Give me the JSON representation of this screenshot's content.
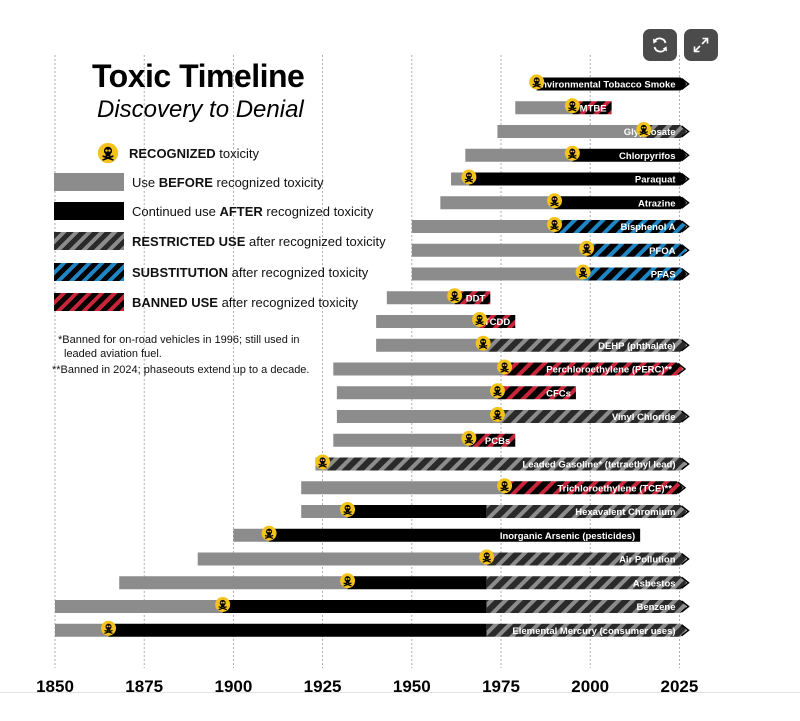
{
  "controls": {
    "refresh_icon": "refresh-icon",
    "expand_icon": "expand-icon"
  },
  "header": {
    "title": "Toxic Timeline",
    "subtitle": "Discovery to Denial"
  },
  "legend": {
    "recognized": {
      "strong": "RECOGNIZED",
      "rest": " toxicity"
    },
    "before": {
      "pre": "Use ",
      "strong": "BEFORE",
      "rest": " recognized toxicity"
    },
    "after": {
      "pre": "Continued use ",
      "strong": "AFTER",
      "rest": " recognized toxicity"
    },
    "restricted": {
      "strong": "RESTRICTED USE",
      "rest": " after recognized toxicity"
    },
    "substitution": {
      "strong": "SUBSTITUTION",
      "rest": " after recognized toxicity"
    },
    "banned": {
      "strong": "BANNED USE",
      "rest": " after recognized toxicity"
    }
  },
  "notes": {
    "note1_line1": "*Banned for on-road vehicles in 1996; still used in",
    "note1_line2": "leaded aviation fuel.",
    "note2": "**Banned in 2024; phaseouts extend up to a decade."
  },
  "colors": {
    "before": "#8c8c8c",
    "after": "#000000",
    "restricted_base": "#2a2a2a",
    "restricted_stripe": "#8c8c8c",
    "substitution_stripe": "#1f86c6",
    "banned_stripe": "#c8243a",
    "skull_badge": "#f3c21b",
    "gridline": "#999999"
  },
  "chart_data": {
    "type": "bar",
    "subtype": "horizontal timeline (Gantt)",
    "x_ticks": [
      1850,
      1875,
      1900,
      1925,
      1950,
      1975,
      2000,
      2025
    ],
    "xlim": [
      1850,
      2025
    ],
    "arrow_on_ongoing": true,
    "items": [
      {
        "label": "Environmental Tobacco Smoke",
        "start": 1985,
        "recognized": 1985,
        "mode": "after",
        "restricted_from": null,
        "end": 2027,
        "ongoing": true
      },
      {
        "label": "MTBE",
        "start": 1979,
        "recognized": 1995,
        "mode": "banned",
        "restricted_from": null,
        "end": 2006,
        "ongoing": false
      },
      {
        "label": "Glyphosate",
        "start": 1974,
        "recognized": 2015,
        "mode": "restricted",
        "restricted_from": null,
        "end": 2027,
        "ongoing": true
      },
      {
        "label": "Chlorpyrifos",
        "start": 1965,
        "recognized": 1995,
        "mode": "after",
        "restricted_from": null,
        "end": 2027,
        "ongoing": true
      },
      {
        "label": "Paraquat",
        "start": 1961,
        "recognized": 1966,
        "mode": "after",
        "restricted_from": null,
        "end": 2027,
        "ongoing": true
      },
      {
        "label": "Atrazine",
        "start": 1958,
        "recognized": 1990,
        "mode": "after",
        "restricted_from": null,
        "end": 2027,
        "ongoing": true
      },
      {
        "label": "Bisphenol A",
        "start": 1950,
        "recognized": 1990,
        "mode": "substitution",
        "restricted_from": null,
        "end": 2027,
        "ongoing": true
      },
      {
        "label": "PFOA",
        "start": 1950,
        "recognized": 1999,
        "mode": "substitution",
        "restricted_from": null,
        "end": 2027,
        "ongoing": true
      },
      {
        "label": "PFAS",
        "start": 1950,
        "recognized": 1998,
        "mode": "substitution",
        "restricted_from": null,
        "end": 2027,
        "ongoing": true
      },
      {
        "label": "DDT",
        "start": 1943,
        "recognized": 1962,
        "mode": "banned",
        "restricted_from": null,
        "end": 1972,
        "ongoing": false
      },
      {
        "label": "TCDD",
        "start": 1940,
        "recognized": 1969,
        "mode": "banned",
        "restricted_from": null,
        "end": 1979,
        "ongoing": false
      },
      {
        "label": "DEHP (phthalate)",
        "start": 1940,
        "recognized": 1970,
        "mode": "restricted",
        "restricted_from": null,
        "end": 2027,
        "ongoing": true
      },
      {
        "label": "Perchloroethylene (PERC)**",
        "start": 1928,
        "recognized": 1976,
        "mode": "banned",
        "restricted_from": null,
        "end": 2026,
        "ongoing": true
      },
      {
        "label": "CFCs",
        "start": 1929,
        "recognized": 1974,
        "mode": "banned",
        "restricted_from": null,
        "end": 1996,
        "ongoing": false
      },
      {
        "label": "Vinyl Chloride",
        "start": 1929,
        "recognized": 1974,
        "mode": "restricted",
        "restricted_from": null,
        "end": 2027,
        "ongoing": true
      },
      {
        "label": "PCBs",
        "start": 1928,
        "recognized": 1966,
        "mode": "banned",
        "restricted_from": null,
        "end": 1979,
        "ongoing": false
      },
      {
        "label": "Leaded Gasoline* (tetraethyl lead)",
        "start": 1923,
        "recognized": 1925,
        "mode": "restricted",
        "restricted_from": null,
        "end": 2027,
        "ongoing": true
      },
      {
        "label": "Trichloroethylene (TCE)**",
        "start": 1919,
        "recognized": 1976,
        "mode": "banned",
        "restricted_from": null,
        "end": 2026,
        "ongoing": true
      },
      {
        "label": "Hexavalent Chromium",
        "start": 1919,
        "recognized": 1932,
        "mode": "after",
        "restricted_from": 1971,
        "end": 2027,
        "ongoing": true
      },
      {
        "label": "Inorganic Arsenic (pesticides)",
        "start": 1900,
        "recognized": 1910,
        "mode": "after",
        "restricted_from": null,
        "end": 2014,
        "ongoing": false
      },
      {
        "label": "Air Pollution",
        "start": 1890,
        "recognized": 1971,
        "mode": "restricted",
        "restricted_from": null,
        "end": 2027,
        "ongoing": true
      },
      {
        "label": "Asbestos",
        "start": 1868,
        "recognized": 1932,
        "mode": "after",
        "restricted_from": 1971,
        "end": 2027,
        "ongoing": true
      },
      {
        "label": "Benzene",
        "start": 1850,
        "recognized": 1897,
        "mode": "after",
        "restricted_from": 1971,
        "end": 2027,
        "ongoing": true
      },
      {
        "label": "Elemental Mercury (consumer uses)",
        "start": 1850,
        "recognized": 1865,
        "mode": "after",
        "restricted_from": 1971,
        "end": 2027,
        "ongoing": true
      }
    ]
  }
}
